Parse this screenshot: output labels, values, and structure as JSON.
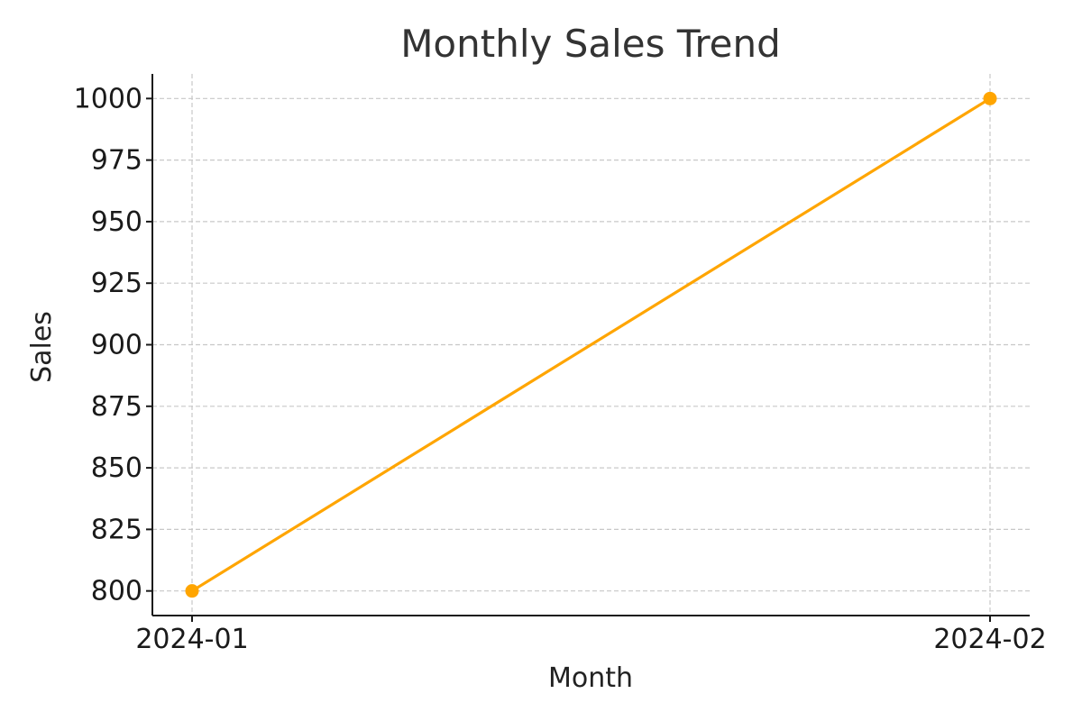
{
  "chart_data": {
    "type": "line",
    "title": "Monthly Sales Trend",
    "xlabel": "Month",
    "ylabel": "Sales",
    "categories": [
      "2024-01",
      "2024-02"
    ],
    "series": [
      {
        "values": [
          800,
          1000
        ],
        "color": "#FFA500",
        "marker": "circle"
      }
    ],
    "yticks": [
      "800",
      "825",
      "850",
      "875",
      "900",
      "925",
      "950",
      "975",
      "1000"
    ],
    "ylim": [
      790,
      1010
    ],
    "grid": true,
    "legend": "none"
  }
}
